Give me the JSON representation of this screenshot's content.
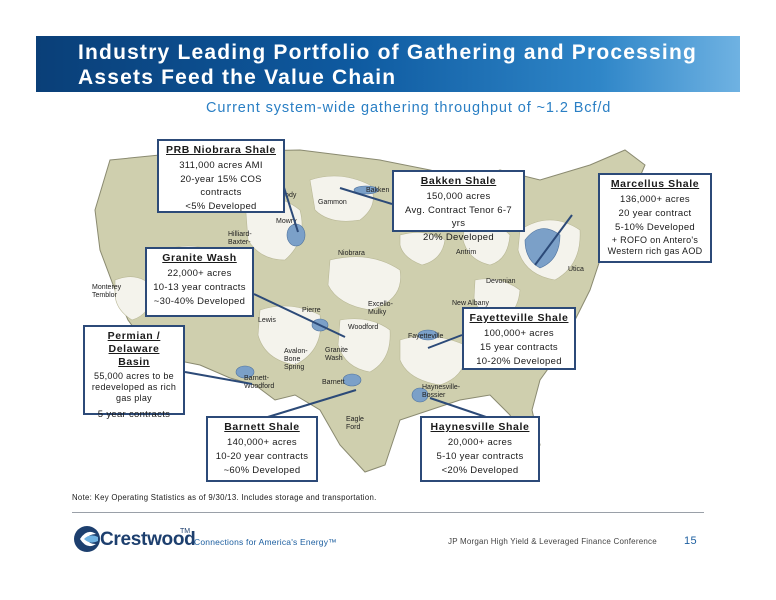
{
  "header": {
    "title": "Industry Leading Portfolio of Gathering and Processing Assets Feed the Value Chain",
    "subtitle": "Current system-wide gathering throughput of ~1.2 Bcf/d"
  },
  "callouts": {
    "prb": {
      "title": "PRB Niobrara Shale",
      "lines": [
        "311,000 acres AMI",
        "20-year 15% COS contracts",
        "<5% Developed"
      ]
    },
    "bakken": {
      "title": "Bakken Shale",
      "lines": [
        "150,000 acres",
        "Avg. Contract Tenor 6-7 yrs",
        "20% Developed"
      ]
    },
    "marcellus": {
      "title": "Marcellus Shale",
      "lines": [
        "136,000+ acres",
        "20 year contract",
        "5-10% Developed",
        "+ ROFO on Antero's Western rich gas AOD"
      ]
    },
    "granite": {
      "title": "Granite Wash",
      "lines": [
        "22,000+ acres",
        "10-13 year contracts",
        "~30-40% Developed"
      ]
    },
    "fayetteville": {
      "title": "Fayetteville Shale",
      "lines": [
        "100,000+ acres",
        "15 year contracts",
        "10-20% Developed"
      ]
    },
    "permian": {
      "title": "Permian / Delaware Basin",
      "lines": [
        "55,000 acres to be redeveloped as rich gas play",
        "5 year contracts"
      ]
    },
    "barnett": {
      "title": "Barnett Shale",
      "lines": [
        "140,000+ acres",
        "10-20 year contracts",
        "~60% Developed"
      ]
    },
    "haynesville": {
      "title": "Haynesville Shale",
      "lines": [
        "20,000+ acres",
        "5-10 year contracts",
        "<20% Developed"
      ]
    }
  },
  "map_labels": {
    "bakken": "Bakken",
    "cody": "Cody",
    "gammon": "Gammon",
    "mowry": "Mowry",
    "hilliard": "Hilliard-Baxter-",
    "niobrara": "Niobrara",
    "antrim": "Antrim",
    "devonian": "Devonian",
    "utica": "Utica",
    "new_albany": "New Albany",
    "monterey": "Monterey Temblor",
    "lewis": "Lewis",
    "pierre": "Pierre",
    "excello": "Excello-Mulky",
    "woodford": "Woodford",
    "fayetteville": "Fayetteville",
    "avalon": "Avalon-Bone Spring",
    "granite_wash": "Granite Wash",
    "barnett_woodford": "Barnett-Woodford",
    "barnett": "Barnett",
    "haynesville": "Haynesville-Bossier",
    "eagle_ford": "Eagle Ford"
  },
  "footer": {
    "note": "Note:  Key Operating Statistics as of 9/30/13.  Includes storage and transportation.",
    "company": "Crestwood",
    "trademark": "TM",
    "tagline": "Connections for America's Energy™",
    "conference": "JP Morgan High Yield & Leveraged Finance Conference",
    "page": "15"
  },
  "colors": {
    "header_blue": "#0e5aa0",
    "subtitle_blue": "#2a7fc4",
    "callout_border": "#2c4a78",
    "map_land": "#cfcfae",
    "map_play": "#f4f3ec",
    "asset_blue": "#7ba0c8"
  }
}
